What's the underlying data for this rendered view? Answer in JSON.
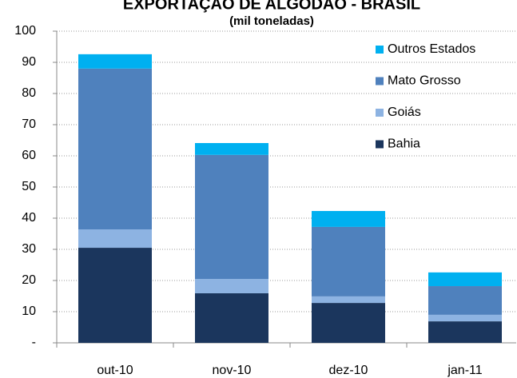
{
  "chart_data": {
    "type": "stacked-bar",
    "title": "EXPORTAÇÃO DE ALGODÃO - BRASIL",
    "subtitle": "(mil toneladas)",
    "categories": [
      "out-10",
      "nov-10",
      "dez-10",
      "jan-11"
    ],
    "series": [
      {
        "name": "Bahia",
        "color": "#1b365d",
        "values": [
          30.5,
          15.9,
          12.8,
          6.9
        ]
      },
      {
        "name": "Goiás",
        "color": "#8db3e2",
        "values": [
          5.9,
          4.6,
          2.1,
          2.1
        ]
      },
      {
        "name": "Mato Grosso",
        "color": "#4f81bd",
        "values": [
          51.6,
          39.8,
          22.3,
          9.2
        ]
      },
      {
        "name": "Outros Estados",
        "color": "#00b0f0",
        "values": [
          4.6,
          3.8,
          5.1,
          4.4
        ]
      }
    ],
    "ylim": [
      0,
      100
    ],
    "yticks": [
      {
        "value": 0,
        "label": "-"
      },
      10,
      20,
      30,
      40,
      50,
      60,
      70,
      80,
      90,
      100
    ],
    "grid": true,
    "legend": "top-right"
  }
}
